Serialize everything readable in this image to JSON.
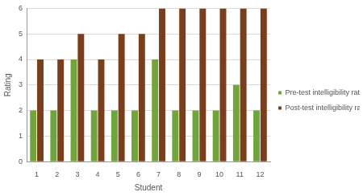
{
  "chart_data": {
    "type": "bar",
    "x_label": "Student",
    "y_label": "Rating",
    "categories": [
      "1",
      "2",
      "3",
      "4",
      "5",
      "6",
      "7",
      "8",
      "9",
      "10",
      "11",
      "12"
    ],
    "series": [
      {
        "name": "Pre-test intelligibility ratings",
        "color": "#72a43c",
        "values": [
          2,
          2,
          4,
          2,
          2,
          2,
          4,
          2,
          2,
          2,
          3,
          2
        ]
      },
      {
        "name": "Post-test intelligibility ratings",
        "color": "#7a3e1c",
        "values": [
          4,
          4,
          5,
          4,
          5,
          5,
          6,
          6,
          6,
          6,
          6,
          6
        ]
      }
    ],
    "ylim": [
      0,
      6
    ],
    "yticks": [
      0,
      1,
      2,
      3,
      4,
      5,
      6
    ],
    "grid": true,
    "legend": "right"
  }
}
